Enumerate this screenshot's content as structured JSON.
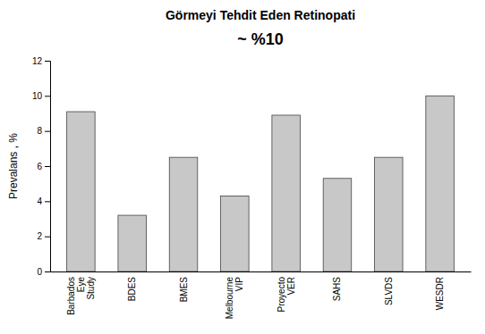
{
  "chart_data": {
    "type": "bar",
    "title": "Görmeyi Tehdit Eden Retinopati",
    "subtitle": "~ %10",
    "ylabel": "Prevalans , %",
    "categories": [
      "Barbados\nEye\nStudy",
      "BDES",
      "BMES",
      "Melbourne\nVIP",
      "Proyecto\nVER",
      "SAHS",
      "SLVDS",
      "WESDR"
    ],
    "values": [
      9.1,
      3.2,
      6.5,
      4.3,
      8.9,
      5.3,
      6.5,
      10.0
    ],
    "color": "#c8c8c8",
    "ylim": [
      0,
      12
    ],
    "yticks": [
      0,
      2,
      4,
      6,
      8,
      10,
      12
    ],
    "grid": false
  }
}
